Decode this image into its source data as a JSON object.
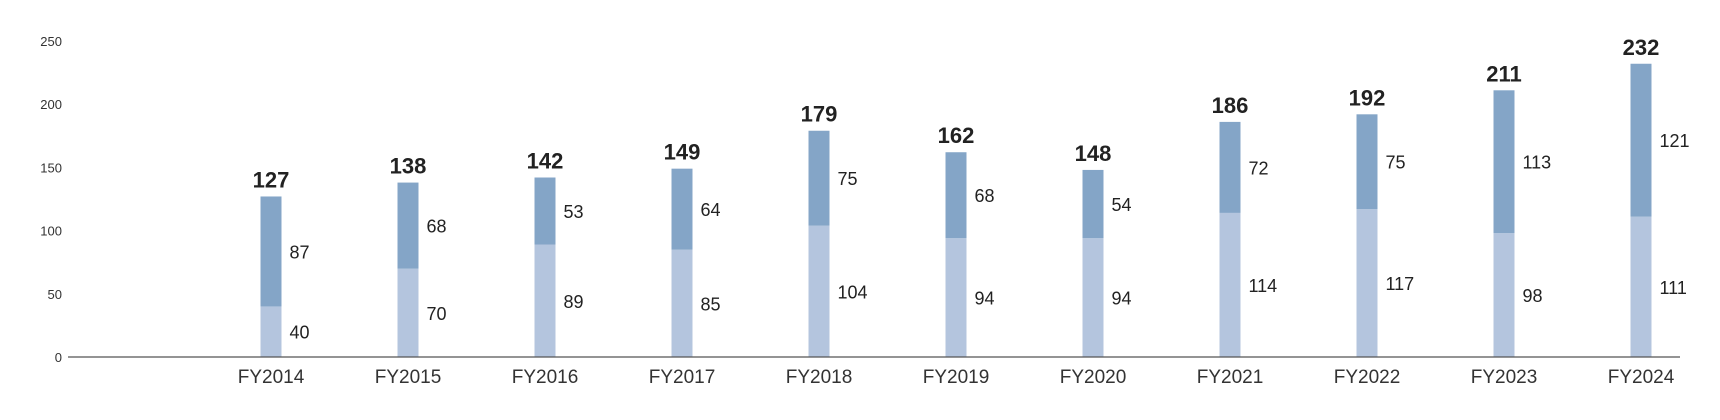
{
  "chart_data": {
    "type": "bar",
    "stacked": true,
    "categories": [
      "FY2014",
      "FY2015",
      "FY2016",
      "FY2017",
      "FY2018",
      "FY2019",
      "FY2020",
      "FY2021",
      "FY2022",
      "FY2023",
      "FY2024"
    ],
    "series": [
      {
        "values": [
          40,
          70,
          89,
          85,
          104,
          94,
          94,
          114,
          117,
          98,
          111
        ],
        "color": "#b4c5de"
      },
      {
        "values": [
          87,
          68,
          53,
          64,
          75,
          68,
          54,
          72,
          75,
          113,
          121
        ],
        "color": "#84a5c7"
      }
    ],
    "totals": [
      127,
      138,
      142,
      149,
      179,
      162,
      148,
      186,
      192,
      211,
      232
    ],
    "ylim": [
      0,
      250
    ],
    "yticks": [
      0,
      50,
      100,
      150,
      200,
      250
    ],
    "grid": false,
    "legend": "none",
    "xlabel": "",
    "ylabel": ""
  }
}
